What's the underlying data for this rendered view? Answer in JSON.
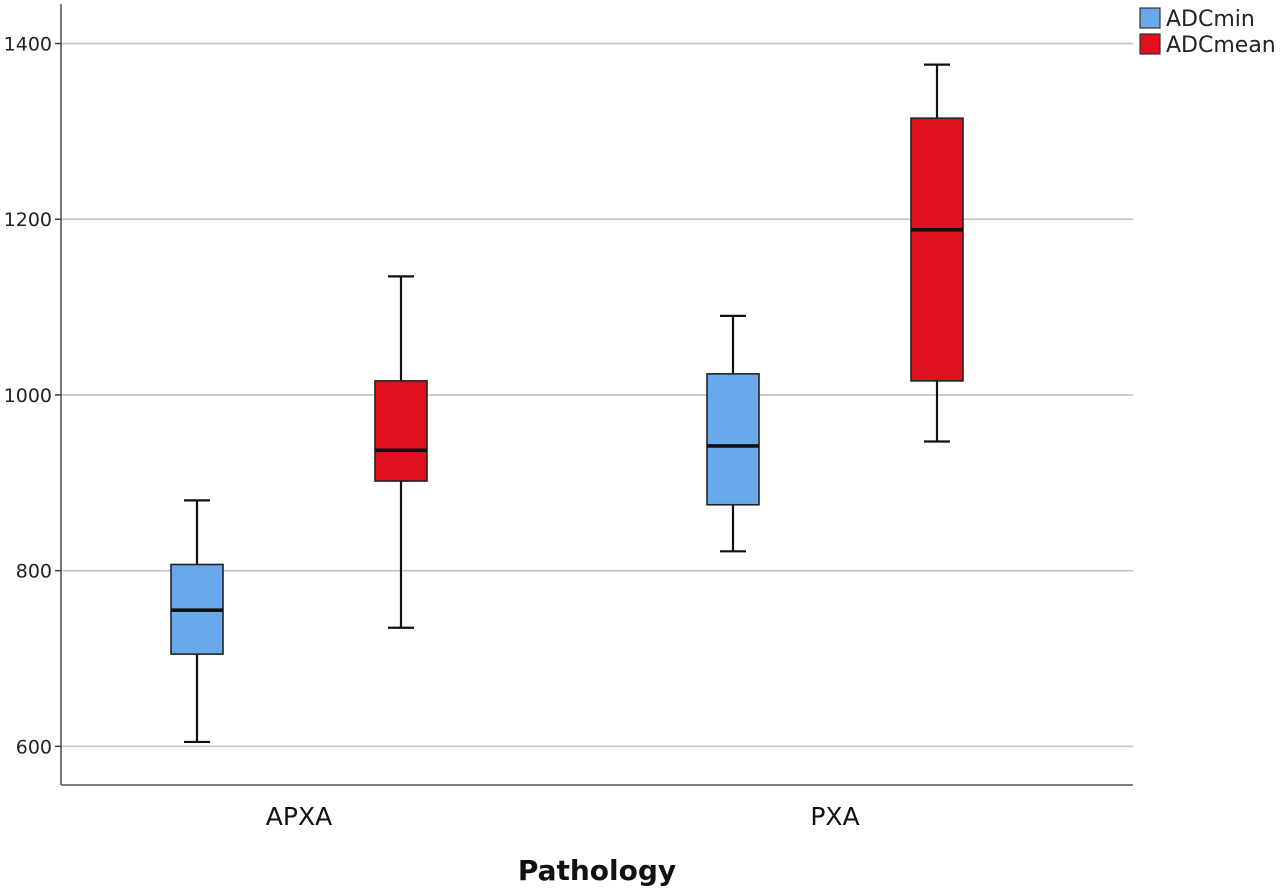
{
  "chart_data": {
    "type": "box",
    "xlabel": "Pathology",
    "ylabel": "",
    "ylim": [
      556,
      1445
    ],
    "yticks": [
      600,
      800,
      1000,
      1200,
      1400
    ],
    "categories": [
      "APXA",
      "PXA"
    ],
    "grid": "horizontal",
    "legend_position": "top-right",
    "series": [
      {
        "name": "ADCmin",
        "color": "#6aa8ec",
        "boxes": [
          {
            "min": 605,
            "q1": 705,
            "median": 755,
            "q3": 807,
            "max": 880
          },
          {
            "min": 822,
            "q1": 875,
            "median": 942,
            "q3": 1024,
            "max": 1090
          }
        ]
      },
      {
        "name": "ADCmean",
        "color": "#e0101f",
        "boxes": [
          {
            "min": 735,
            "q1": 902,
            "median": 937,
            "q3": 1016,
            "max": 1135
          },
          {
            "min": 947,
            "q1": 1016,
            "median": 1188,
            "q3": 1315,
            "max": 1376
          }
        ]
      }
    ]
  }
}
